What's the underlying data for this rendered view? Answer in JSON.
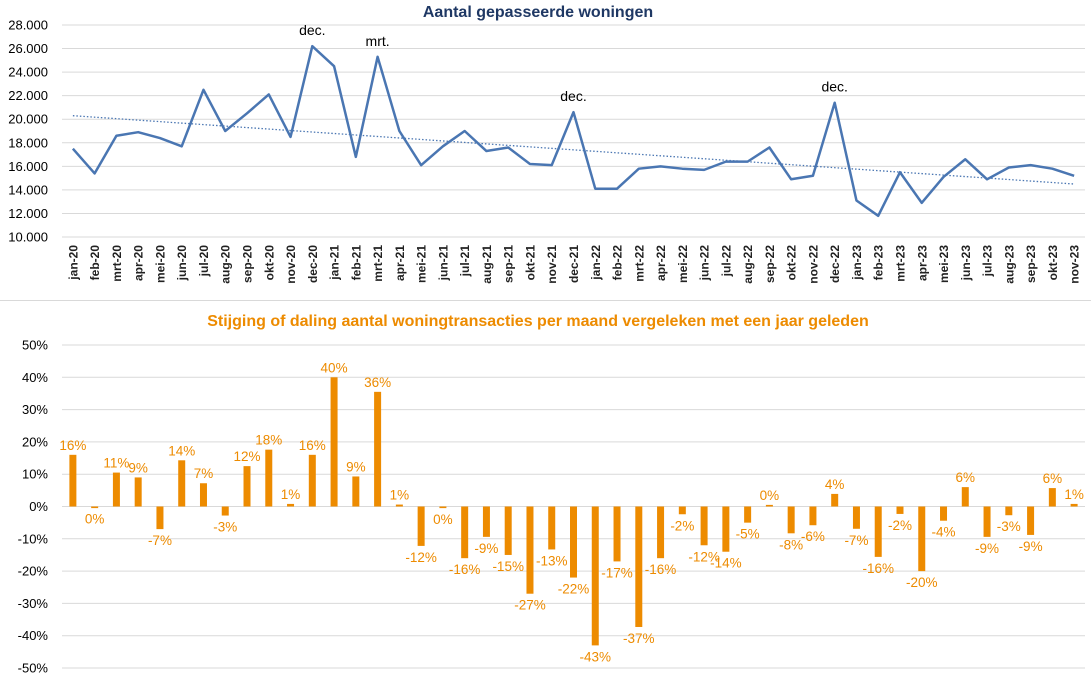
{
  "colors": {
    "line": "#4a76b2",
    "trend": "#4a76b2",
    "bar": "#ed8b00",
    "title_top": "#1f3864",
    "title_bottom": "#ed8b00",
    "grid": "#d9d9d9"
  },
  "chart_data": [
    {
      "type": "line",
      "title": "Aantal gepasseerde woningen",
      "ylim": [
        10000,
        28000
      ],
      "yticks": [
        "10.000",
        "12.000",
        "14.000",
        "16.000",
        "18.000",
        "20.000",
        "22.000",
        "24.000",
        "26.000",
        "28.000"
      ],
      "ytick_values": [
        10000,
        12000,
        14000,
        16000,
        18000,
        20000,
        22000,
        24000,
        26000,
        28000
      ],
      "grid": "horizontal",
      "categories": [
        "jan-20",
        "feb-20",
        "mrt-20",
        "apr-20",
        "mei-20",
        "jun-20",
        "jul-20",
        "aug-20",
        "sep-20",
        "okt-20",
        "nov-20",
        "dec-20",
        "jan-21",
        "feb-21",
        "mrt-21",
        "apr-21",
        "mei-21",
        "jun-21",
        "jul-21",
        "aug-21",
        "sep-21",
        "okt-21",
        "nov-21",
        "dec-21",
        "jan-22",
        "feb-22",
        "mrt-22",
        "apr-22",
        "mei-22",
        "jun-22",
        "jul-22",
        "aug-22",
        "sep-22",
        "okt-22",
        "nov-22",
        "dec-22",
        "jan-23",
        "feb-23",
        "mrt-23",
        "apr-23",
        "mei-23",
        "jun-23",
        "jul-23",
        "aug-23",
        "sep-23",
        "okt-23",
        "nov-23"
      ],
      "values": [
        17500,
        15400,
        18600,
        18900,
        18400,
        17700,
        22500,
        19000,
        20500,
        22100,
        18500,
        26200,
        24500,
        16800,
        25300,
        19000,
        16100,
        17700,
        19000,
        17300,
        17600,
        16200,
        16100,
        20600,
        14100,
        14100,
        15800,
        16000,
        15800,
        15700,
        16400,
        16400,
        17600,
        14900,
        15200,
        21400,
        13100,
        11800,
        15500,
        12900,
        15100,
        16600,
        14900,
        15900,
        16100,
        15800,
        15200
      ],
      "trendline": {
        "start": 20300,
        "end": 14500
      },
      "annotations": [
        {
          "label": "dec.",
          "category": "dec-20"
        },
        {
          "label": "mrt.",
          "category": "mrt-21"
        },
        {
          "label": "dec.",
          "category": "dec-21"
        },
        {
          "label": "dec.",
          "category": "dec-22"
        }
      ]
    },
    {
      "type": "bar",
      "title": "Stijging of daling aantal woningtransacties per maand vergeleken met een jaar geleden",
      "ylim": [
        -50,
        50
      ],
      "yticks": [
        "-50%",
        "-40%",
        "-30%",
        "-20%",
        "-10%",
        "0%",
        "10%",
        "20%",
        "30%",
        "40%",
        "50%"
      ],
      "ytick_values": [
        -50,
        -40,
        -30,
        -20,
        -10,
        0,
        10,
        20,
        30,
        40,
        50
      ],
      "grid": "horizontal",
      "values": [
        16,
        0,
        11,
        9,
        -7,
        14,
        7,
        -3,
        12,
        18,
        1,
        16,
        40,
        9,
        36,
        1,
        -12,
        0,
        -16,
        -9,
        -15,
        -27,
        -13,
        -22,
        -43,
        -17,
        -37,
        -16,
        -2,
        -12,
        -14,
        -5,
        0,
        -8,
        -6,
        4,
        -7,
        -16,
        -2,
        -20,
        -4,
        6,
        -9,
        -3,
        -9,
        6,
        1
      ],
      "bar_values": [
        16,
        -0.3,
        10.5,
        9,
        -7,
        14.3,
        7.2,
        -2.8,
        12.5,
        17.6,
        0.8,
        16,
        40,
        9.3,
        35.5,
        0.6,
        -12.2,
        -0.5,
        -16,
        -9.4,
        -15,
        -27,
        -13.3,
        -22,
        -43,
        -17,
        -37.3,
        -16,
        -2.4,
        -12,
        -14,
        -5,
        0.5,
        -8.3,
        -5.8,
        3.9,
        -6.9,
        -15.6,
        -2.3,
        -20,
        -4.4,
        6,
        -9.4,
        -2.7,
        -8.8,
        5.7,
        0.8
      ],
      "labels": [
        "16%",
        "0%",
        "11%",
        "9%",
        "-7%",
        "14%",
        "7%",
        "-3%",
        "12%",
        "18%",
        "1%",
        "16%",
        "40%",
        "9%",
        "36%",
        "1%",
        "-12%",
        "0%",
        "-16%",
        "-9%",
        "-15%",
        "-27%",
        "-13%",
        "-22%",
        "-43%",
        "-17%",
        "-37%",
        "-16%",
        "-2%",
        "-12%",
        "-14%",
        "-5%",
        "0%",
        "-8%",
        "-6%",
        "4%",
        "-7%",
        "-16%",
        "-2%",
        "-20%",
        "-4%",
        "6%",
        "-9%",
        "-3%",
        "-9%",
        "6%",
        "1%"
      ]
    }
  ]
}
